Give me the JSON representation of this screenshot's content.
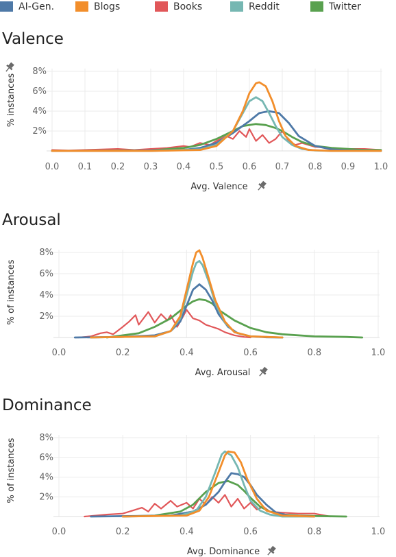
{
  "legend": [
    {
      "label": "AI-Gen.",
      "color": "#4e79a7"
    },
    {
      "label": "Blogs",
      "color": "#f28e2b"
    },
    {
      "label": "Books",
      "color": "#e15759"
    },
    {
      "label": "Reddit",
      "color": "#76b7b2"
    },
    {
      "label": "Twitter",
      "color": "#59a14f"
    }
  ],
  "icons": [
    "pin-icon"
  ],
  "chart_data": [
    {
      "type": "line",
      "title": "Valence",
      "xlabel": "Avg. Valence",
      "ylabel": "% instances",
      "x_ticks": [
        "0.0",
        "0.1",
        "0.2",
        "0.3",
        "0.4",
        "0.5",
        "0.6",
        "0.7",
        "0.8",
        "0.9",
        "1.0"
      ],
      "x_tick_values": [
        0,
        0.1,
        0.2,
        0.3,
        0.4,
        0.5,
        0.6,
        0.7,
        0.8,
        0.9,
        1.0
      ],
      "y_ticks": [
        "8%",
        "6%",
        "4%",
        "2%"
      ],
      "y_tick_values": [
        8,
        6,
        4,
        2
      ],
      "xlim": [
        0,
        1
      ],
      "ylim": [
        0,
        8
      ],
      "grid": true,
      "series": [
        {
          "name": "AI-Gen.",
          "x": [
            0.0,
            0.1,
            0.2,
            0.3,
            0.4,
            0.45,
            0.5,
            0.55,
            0.6,
            0.63,
            0.66,
            0.69,
            0.72,
            0.75,
            0.8,
            0.85,
            0.9,
            1.0
          ],
          "values": [
            0.0,
            0.0,
            0.0,
            0.05,
            0.1,
            0.3,
            0.8,
            1.8,
            3.0,
            3.8,
            4.0,
            3.8,
            2.8,
            1.5,
            0.5,
            0.15,
            0.05,
            0.0
          ]
        },
        {
          "name": "Blogs",
          "x": [
            0.0,
            0.3,
            0.45,
            0.5,
            0.55,
            0.58,
            0.6,
            0.62,
            0.63,
            0.65,
            0.67,
            0.69,
            0.71,
            0.74,
            0.78,
            0.85,
            1.0
          ],
          "values": [
            0.0,
            0.0,
            0.1,
            0.5,
            2.0,
            4.0,
            5.8,
            6.8,
            6.9,
            6.5,
            5.0,
            3.0,
            1.5,
            0.5,
            0.1,
            0.0,
            0.0
          ]
        },
        {
          "name": "Books",
          "x": [
            0.0,
            0.05,
            0.1,
            0.15,
            0.2,
            0.25,
            0.3,
            0.35,
            0.4,
            0.42,
            0.45,
            0.48,
            0.5,
            0.53,
            0.55,
            0.57,
            0.59,
            0.6,
            0.62,
            0.64,
            0.66,
            0.68,
            0.7,
            0.72,
            0.74,
            0.76,
            0.8,
            0.85,
            0.9,
            0.95,
            1.0
          ],
          "values": [
            0.1,
            0.05,
            0.1,
            0.15,
            0.2,
            0.1,
            0.2,
            0.3,
            0.5,
            0.4,
            0.8,
            0.6,
            1.0,
            1.5,
            1.2,
            2.0,
            1.4,
            2.2,
            1.0,
            1.6,
            0.8,
            1.2,
            2.0,
            1.0,
            0.6,
            0.8,
            0.4,
            0.3,
            0.2,
            0.2,
            0.1
          ]
        },
        {
          "name": "Reddit",
          "x": [
            0.0,
            0.3,
            0.45,
            0.5,
            0.55,
            0.58,
            0.6,
            0.62,
            0.64,
            0.66,
            0.68,
            0.7,
            0.73,
            0.76,
            0.8,
            0.85,
            1.0
          ],
          "values": [
            0.0,
            0.0,
            0.15,
            0.6,
            2.0,
            3.8,
            5.0,
            5.4,
            5.0,
            3.8,
            2.5,
            1.4,
            0.6,
            0.2,
            0.05,
            0.0,
            0.0
          ]
        },
        {
          "name": "Twitter",
          "x": [
            0.0,
            0.3,
            0.4,
            0.45,
            0.5,
            0.55,
            0.58,
            0.62,
            0.65,
            0.68,
            0.7,
            0.73,
            0.76,
            0.8,
            0.85,
            0.9,
            0.95,
            1.0
          ],
          "values": [
            0.0,
            0.05,
            0.3,
            0.6,
            1.2,
            2.0,
            2.5,
            2.7,
            2.6,
            2.3,
            2.0,
            1.4,
            0.9,
            0.5,
            0.3,
            0.2,
            0.1,
            0.1
          ]
        }
      ]
    },
    {
      "type": "line",
      "title": "Arousal",
      "xlabel": "Avg. Arousal",
      "ylabel": "% of instances",
      "x_ticks": [
        "0.0",
        "0.2",
        "0.4",
        "0.6",
        "0.8",
        "1.0"
      ],
      "x_tick_values": [
        0,
        0.2,
        0.4,
        0.6,
        0.8,
        1.0
      ],
      "y_ticks": [
        "8%",
        "6%",
        "4%",
        "2%"
      ],
      "y_tick_values": [
        8,
        6,
        4,
        2
      ],
      "xlim": [
        0,
        1
      ],
      "ylim": [
        0,
        8
      ],
      "grid": true,
      "series": [
        {
          "name": "AI-Gen.",
          "x": [
            0.05,
            0.2,
            0.3,
            0.35,
            0.38,
            0.4,
            0.42,
            0.44,
            0.46,
            0.48,
            0.5,
            0.53,
            0.56,
            0.6,
            0.65,
            0.7
          ],
          "values": [
            0.0,
            0.05,
            0.2,
            0.6,
            1.5,
            3.0,
            4.5,
            5.0,
            4.5,
            3.5,
            2.2,
            1.0,
            0.4,
            0.1,
            0.02,
            0.0
          ]
        },
        {
          "name": "Blogs",
          "x": [
            0.1,
            0.3,
            0.35,
            0.38,
            0.4,
            0.42,
            0.43,
            0.44,
            0.45,
            0.47,
            0.49,
            0.52,
            0.55,
            0.6,
            0.7
          ],
          "values": [
            0.0,
            0.1,
            0.6,
            2.0,
            4.5,
            7.0,
            8.0,
            8.2,
            7.5,
            5.5,
            3.5,
            1.5,
            0.5,
            0.1,
            0.0
          ]
        },
        {
          "name": "Books",
          "x": [
            0.06,
            0.1,
            0.13,
            0.15,
            0.17,
            0.2,
            0.22,
            0.24,
            0.25,
            0.27,
            0.28,
            0.3,
            0.32,
            0.34,
            0.35,
            0.37,
            0.38,
            0.4,
            0.42,
            0.44,
            0.46,
            0.48,
            0.5,
            0.52,
            0.55,
            0.58,
            0.6
          ],
          "values": [
            0.0,
            0.1,
            0.4,
            0.5,
            0.3,
            1.0,
            1.5,
            2.1,
            1.2,
            2.0,
            2.4,
            1.4,
            2.2,
            1.6,
            2.1,
            1.0,
            1.5,
            2.6,
            1.8,
            1.6,
            1.2,
            1.0,
            0.8,
            0.5,
            0.2,
            0.05,
            0.0
          ]
        },
        {
          "name": "Reddit",
          "x": [
            0.1,
            0.3,
            0.35,
            0.38,
            0.4,
            0.42,
            0.43,
            0.44,
            0.45,
            0.47,
            0.49,
            0.52,
            0.55,
            0.6,
            0.7
          ],
          "values": [
            0.0,
            0.1,
            0.6,
            1.8,
            4.0,
            6.2,
            7.0,
            7.2,
            6.8,
            5.2,
            3.2,
            1.4,
            0.5,
            0.1,
            0.0
          ]
        },
        {
          "name": "Twitter",
          "x": [
            0.15,
            0.25,
            0.3,
            0.35,
            0.4,
            0.42,
            0.44,
            0.46,
            0.48,
            0.5,
            0.55,
            0.6,
            0.65,
            0.7,
            0.8,
            0.9,
            0.95
          ],
          "values": [
            0.0,
            0.4,
            1.0,
            1.8,
            3.0,
            3.4,
            3.6,
            3.5,
            3.2,
            2.6,
            1.6,
            0.9,
            0.5,
            0.3,
            0.1,
            0.05,
            0.0
          ]
        }
      ]
    },
    {
      "type": "line",
      "title": "Dominance",
      "xlabel": "Avg. Dominance",
      "ylabel": "% of instances",
      "x_ticks": [
        "0.0",
        "0.2",
        "0.4",
        "0.6",
        "0.8",
        "1.0"
      ],
      "x_tick_values": [
        0,
        0.2,
        0.4,
        0.6,
        0.8,
        1.0
      ],
      "y_ticks": [
        "8%",
        "6%",
        "4%",
        "2%"
      ],
      "y_tick_values": [
        8,
        6,
        4,
        2
      ],
      "xlim": [
        0,
        1
      ],
      "ylim": [
        0,
        8
      ],
      "grid": true,
      "series": [
        {
          "name": "AI-Gen.",
          "x": [
            0.1,
            0.35,
            0.42,
            0.46,
            0.5,
            0.52,
            0.54,
            0.56,
            0.58,
            0.6,
            0.62,
            0.65,
            0.68,
            0.72,
            0.8
          ],
          "values": [
            0.0,
            0.1,
            0.5,
            1.2,
            2.5,
            3.5,
            4.4,
            4.3,
            4.0,
            3.2,
            2.2,
            1.2,
            0.4,
            0.1,
            0.0
          ]
        },
        {
          "name": "Blogs",
          "x": [
            0.2,
            0.4,
            0.44,
            0.47,
            0.5,
            0.52,
            0.53,
            0.55,
            0.57,
            0.59,
            0.62,
            0.65,
            0.7,
            0.8
          ],
          "values": [
            0.0,
            0.1,
            0.6,
            2.0,
            4.5,
            6.2,
            6.6,
            6.5,
            5.5,
            3.8,
            1.8,
            0.6,
            0.1,
            0.0
          ]
        },
        {
          "name": "Books",
          "x": [
            0.08,
            0.15,
            0.2,
            0.23,
            0.26,
            0.28,
            0.3,
            0.32,
            0.35,
            0.37,
            0.4,
            0.42,
            0.44,
            0.46,
            0.48,
            0.5,
            0.52,
            0.54,
            0.56,
            0.58,
            0.6,
            0.62,
            0.64,
            0.66,
            0.7,
            0.75,
            0.8,
            0.85
          ],
          "values": [
            0.0,
            0.2,
            0.3,
            0.6,
            0.9,
            0.5,
            1.3,
            0.8,
            1.6,
            1.0,
            1.4,
            0.8,
            1.8,
            1.2,
            2.0,
            1.4,
            2.2,
            1.0,
            1.8,
            0.8,
            1.4,
            0.7,
            1.0,
            0.5,
            0.4,
            0.3,
            0.3,
            0.0
          ]
        },
        {
          "name": "Reddit",
          "x": [
            0.2,
            0.38,
            0.43,
            0.46,
            0.49,
            0.51,
            0.52,
            0.54,
            0.56,
            0.58,
            0.6,
            0.63,
            0.66,
            0.7,
            0.8
          ],
          "values": [
            0.0,
            0.1,
            0.6,
            2.0,
            4.5,
            6.3,
            6.6,
            6.2,
            5.0,
            3.2,
            1.6,
            0.6,
            0.2,
            0.0,
            0.0
          ]
        },
        {
          "name": "Twitter",
          "x": [
            0.2,
            0.3,
            0.38,
            0.42,
            0.46,
            0.5,
            0.53,
            0.56,
            0.58,
            0.6,
            0.63,
            0.66,
            0.7,
            0.75,
            0.8,
            0.9
          ],
          "values": [
            0.0,
            0.1,
            0.5,
            1.2,
            2.5,
            3.4,
            3.6,
            3.2,
            2.6,
            1.9,
            1.0,
            0.5,
            0.2,
            0.1,
            0.05,
            0.0
          ]
        }
      ]
    }
  ]
}
